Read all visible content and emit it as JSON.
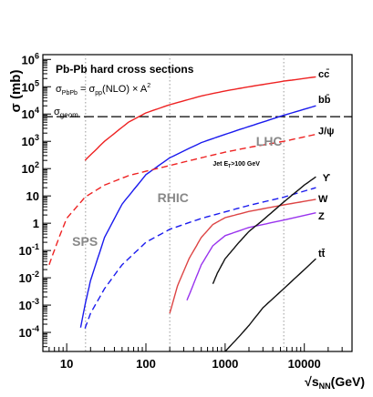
{
  "chart_data": {
    "type": "line",
    "title": "Pb-Pb hard cross sections",
    "formula": {
      "lhs": "σ",
      "lhs_sub": "PbPb",
      "eq": " = σ",
      "pp_sub": "pp",
      "rest": "(NLO) × A",
      "exp": "2"
    },
    "ylabel": "σ (mb)",
    "xlabel": {
      "sqrt": "√s",
      "sub": "NN",
      "unit": "(GeV)"
    },
    "xscale": "log",
    "yscale": "log",
    "xlim": [
      5,
      40000
    ],
    "ylim": [
      2e-05,
      1500000
    ],
    "x_ticks": [
      {
        "value": 10,
        "label": "10"
      },
      {
        "value": 100,
        "label": "100"
      },
      {
        "value": 1000,
        "label": "1000"
      },
      {
        "value": 10000,
        "label": "10000"
      }
    ],
    "y_ticks": [
      {
        "exp": -4,
        "base": "10",
        "sup": "-4"
      },
      {
        "exp": -3,
        "base": "10",
        "sup": "-3"
      },
      {
        "exp": -2,
        "base": "10",
        "sup": "-2"
      },
      {
        "exp": -1,
        "base": "10",
        "sup": "-1"
      },
      {
        "exp": 0,
        "base": "1",
        "sup": ""
      },
      {
        "exp": 1,
        "base": "10",
        "sup": ""
      },
      {
        "exp": 2,
        "base": "10",
        "sup": "2"
      },
      {
        "exp": 3,
        "base": "10",
        "sup": "3"
      },
      {
        "exp": 4,
        "base": "10",
        "sup": "4"
      },
      {
        "exp": 5,
        "base": "10",
        "sup": "5"
      },
      {
        "exp": 6,
        "base": "10",
        "sup": "6"
      }
    ],
    "geom": {
      "value": 8000,
      "label": "σ",
      "label_sub": "geom"
    },
    "energy_markers": [
      {
        "name": "SPS",
        "x": 17.3
      },
      {
        "name": "RHIC",
        "x": 200
      },
      {
        "name": "LHC",
        "x": 5500
      }
    ],
    "energy_labels": [
      {
        "text": "SPS",
        "x": 17,
        "y": 0.15
      },
      {
        "text": "RHIC",
        "x": 220,
        "y": 6
      },
      {
        "text": "LHC",
        "x": 3600,
        "y": 700
      }
    ],
    "series": [
      {
        "name": "cc̄",
        "color": "#ee2222",
        "dash": false,
        "x": [
          17,
          30,
          60,
          100,
          200,
          500,
          1000,
          2000,
          5500,
          14000
        ],
        "y": [
          200,
          1000,
          5000,
          11000,
          22000,
          46000,
          70000,
          100000,
          160000,
          230000
        ]
      },
      {
        "name": "bb̄",
        "color": "#1a1aee",
        "dash": false,
        "x": [
          15,
          17,
          20,
          30,
          50,
          100,
          200,
          500,
          1000,
          2000,
          5500,
          14000
        ],
        "y": [
          0.00015,
          0.001,
          0.008,
          0.3,
          5,
          60,
          250,
          900,
          1800,
          3500,
          9000,
          20000
        ]
      },
      {
        "name": "J/ψ",
        "color": "#ee2222",
        "dash": true,
        "x": [
          6,
          8,
          10,
          17,
          30,
          60,
          100,
          200,
          500,
          1000,
          2000,
          5500,
          14000
        ],
        "y": [
          0.03,
          0.3,
          1.5,
          9,
          25,
          55,
          80,
          130,
          250,
          400,
          600,
          1000,
          1800
        ]
      },
      {
        "name": "ϒ",
        "color": "#1a1aee",
        "dash": true,
        "x": [
          17,
          20,
          30,
          50,
          100,
          200,
          500,
          1000,
          2000,
          5500,
          14000
        ],
        "y": [
          0.00014,
          0.0005,
          0.004,
          0.03,
          0.2,
          0.6,
          1.5,
          2.6,
          4.5,
          9,
          20
        ]
      },
      {
        "name": "W",
        "color": "#dd4444",
        "dash": false,
        "x": [
          200,
          250,
          350,
          500,
          700,
          1000,
          2000,
          5500,
          14000
        ],
        "y": [
          0.0005,
          0.005,
          0.05,
          0.3,
          0.9,
          1.6,
          2.7,
          4.7,
          7.5
        ]
      },
      {
        "name": "Z",
        "color": "#9933ee",
        "dash": false,
        "x": [
          330,
          400,
          500,
          700,
          1000,
          2000,
          5500,
          14000
        ],
        "y": [
          0.0015,
          0.006,
          0.03,
          0.15,
          0.35,
          0.7,
          1.3,
          2.4
        ]
      },
      {
        "name": "Jet E_T>100 GeV",
        "color": "#111111",
        "dash": false,
        "x": [
          700,
          800,
          1000,
          1500,
          2000,
          3000,
          5500,
          10000,
          14000
        ],
        "y": [
          0.006,
          0.015,
          0.05,
          0.2,
          0.5,
          1.3,
          6,
          25,
          50
        ]
      },
      {
        "name": "tt̄",
        "color": "#111111",
        "dash": false,
        "x": [
          1000,
          1500,
          2000,
          3000,
          5500,
          10000,
          14000
        ],
        "y": [
          2e-05,
          7e-05,
          0.00018,
          0.0008,
          0.004,
          0.02,
          0.05
        ]
      }
    ],
    "series_labels": [
      {
        "text": "cc̄",
        "x": 15000,
        "y": 220000,
        "size": 11
      },
      {
        "text": "bb̄",
        "x": 15000,
        "y": 26000,
        "size": 11
      },
      {
        "text": "J/ψ",
        "x": 15000,
        "y": 1800,
        "size": 11
      },
      {
        "text": "Jet E",
        "sub": "T",
        "tail": ">100 GeV",
        "x": 700,
        "y": 130,
        "size": 7
      },
      {
        "text": "ϒ",
        "x": 17000,
        "y": 35,
        "size": 11
      },
      {
        "text": "W",
        "x": 15000,
        "y": 6,
        "size": 11
      },
      {
        "text": "Z",
        "x": 15000,
        "y": 1.4,
        "size": 11
      },
      {
        "text": "tt̄",
        "x": 15000,
        "y": 0.06,
        "size": 11
      }
    ],
    "grid": false,
    "legend": "none"
  }
}
